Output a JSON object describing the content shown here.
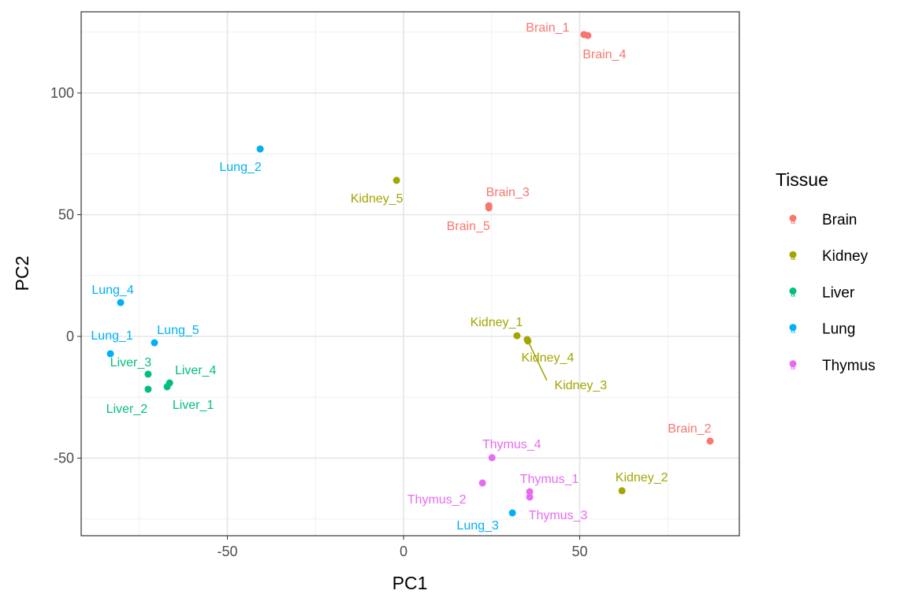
{
  "chart_data": {
    "type": "scatter",
    "title": "",
    "xlabel": "PC1",
    "ylabel": "PC2",
    "xlim": [
      -92,
      96
    ],
    "ylim": [
      -82,
      129
    ],
    "x_ticks": [
      -50,
      0,
      50
    ],
    "y_ticks": [
      -50,
      0,
      50,
      100
    ],
    "grid": true,
    "legend": {
      "title": "Tissue",
      "position": "right"
    },
    "series": [
      {
        "name": "Brain",
        "color": "#F8766D",
        "points": [
          {
            "label": "Brain_1",
            "x": 51.2,
            "y": 124.0
          },
          {
            "label": "Brain_4",
            "x": 52.3,
            "y": 123.6
          },
          {
            "label": "Brain_3",
            "x": 24.2,
            "y": 53.7
          },
          {
            "label": "Brain_5",
            "x": 24.2,
            "y": 52.8
          },
          {
            "label": "Brain_2",
            "x": 87.0,
            "y": -43.0
          }
        ]
      },
      {
        "name": "Kidney",
        "color": "#A3A500",
        "points": [
          {
            "label": "Kidney_5",
            "x": -2.0,
            "y": 64.1
          },
          {
            "label": "Kidney_1",
            "x": 32.2,
            "y": 0.3
          },
          {
            "label": "Kidney_4",
            "x": 35.1,
            "y": -1.3
          },
          {
            "label": "Kidney_3",
            "x": 35.3,
            "y": -1.9
          },
          {
            "label": "Kidney_2",
            "x": 62.0,
            "y": -63.4
          }
        ]
      },
      {
        "name": "Liver",
        "color": "#00BF7D",
        "points": [
          {
            "label": "Liver_3",
            "x": -72.5,
            "y": -15.5
          },
          {
            "label": "Liver_2",
            "x": -72.5,
            "y": -21.7
          },
          {
            "label": "Liver_4",
            "x": -66.4,
            "y": -19.1
          },
          {
            "label": "Liver_1",
            "x": -67.1,
            "y": -20.7
          }
        ]
      },
      {
        "name": "Lung",
        "color": "#00B0F6",
        "points": [
          {
            "label": "Lung_2",
            "x": -40.7,
            "y": 77.0
          },
          {
            "label": "Lung_4",
            "x": -80.3,
            "y": 13.9
          },
          {
            "label": "Lung_1",
            "x": -83.2,
            "y": -7.1
          },
          {
            "label": "Lung_5",
            "x": -70.7,
            "y": -2.6
          },
          {
            "label": "Lung_3",
            "x": 30.9,
            "y": -72.5
          }
        ]
      },
      {
        "name": "Thymus",
        "color": "#E76BF3",
        "points": [
          {
            "label": "Thymus_4",
            "x": 25.1,
            "y": -49.8
          },
          {
            "label": "Thymus_2",
            "x": 22.4,
            "y": -60.2
          },
          {
            "label": "Thymus_1",
            "x": 35.8,
            "y": -63.8
          },
          {
            "label": "Thymus_3",
            "x": 35.8,
            "y": -66.0
          }
        ]
      }
    ]
  }
}
